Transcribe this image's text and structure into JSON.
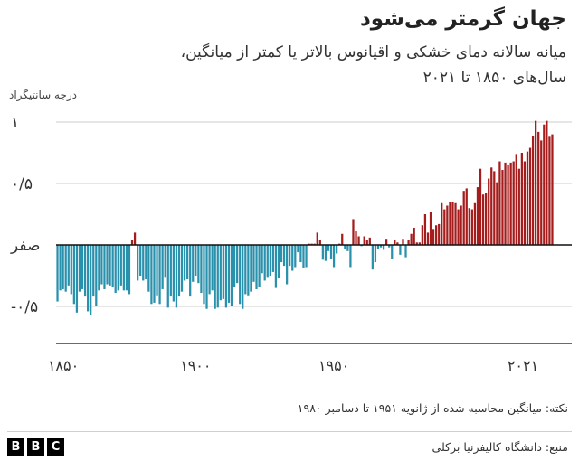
{
  "chart_data": {
    "type": "bar",
    "title": "جهان گرمتر می‌شود",
    "subtitle_lines": [
      "میانه سالانه دمای خشکی و اقیانوس بالاتر یا کمتر از میانگین،",
      "سال‌های ۱۸۵۰ تا ۲۰۲۱"
    ],
    "ylabel": "درجه سانتیگراد",
    "xlabel": "",
    "ylim": [
      -0.82,
      1.05
    ],
    "xlim": [
      1850,
      2021
    ],
    "y_ticks": [
      {
        "value": 1,
        "label": "۱"
      },
      {
        "value": 0.5,
        "label": "۰/۵"
      },
      {
        "value": 0,
        "label": "صفر"
      },
      {
        "value": -0.5,
        "label": "-۰/۵"
      }
    ],
    "x_ticks": [
      {
        "value": 1850,
        "label": "۱۸۵۰"
      },
      {
        "value": 1900,
        "label": "۱۹۰۰"
      },
      {
        "value": 1950,
        "label": "۱۹۵۰"
      },
      {
        "value": 2021,
        "label": "۲۰۲۱"
      }
    ],
    "grid": true,
    "legend": "none",
    "start_year": 1850,
    "colors": {
      "positive": "#a51c1c",
      "negative": "#2a91ad",
      "grid": "#cccccc",
      "axis": "#111111"
    },
    "values": [
      -0.46,
      -0.37,
      -0.36,
      -0.38,
      -0.33,
      -0.4,
      -0.48,
      -0.55,
      -0.38,
      -0.36,
      -0.42,
      -0.54,
      -0.57,
      -0.42,
      -0.5,
      -0.37,
      -0.32,
      -0.36,
      -0.32,
      -0.33,
      -0.34,
      -0.39,
      -0.37,
      -0.33,
      -0.37,
      -0.37,
      -0.4,
      0.04,
      0.1,
      -0.29,
      -0.25,
      -0.29,
      -0.28,
      -0.38,
      -0.48,
      -0.47,
      -0.41,
      -0.48,
      -0.36,
      -0.26,
      -0.51,
      -0.42,
      -0.46,
      -0.51,
      -0.42,
      -0.38,
      -0.29,
      -0.28,
      -0.42,
      -0.3,
      -0.25,
      -0.31,
      -0.39,
      -0.48,
      -0.52,
      -0.4,
      -0.37,
      -0.52,
      -0.51,
      -0.45,
      -0.44,
      -0.51,
      -0.47,
      -0.5,
      -0.34,
      -0.31,
      -0.48,
      -0.52,
      -0.4,
      -0.41,
      -0.38,
      -0.3,
      -0.36,
      -0.34,
      -0.23,
      -0.29,
      -0.26,
      -0.25,
      -0.22,
      -0.35,
      -0.27,
      -0.14,
      -0.17,
      -0.32,
      -0.17,
      -0.21,
      -0.18,
      -0.06,
      -0.14,
      -0.19,
      -0.18,
      0.01,
      0.01,
      0.01,
      0.1,
      0.04,
      -0.12,
      -0.13,
      -0.05,
      -0.11,
      -0.18,
      -0.07,
      0.01,
      0.09,
      -0.03,
      -0.05,
      -0.18,
      0.21,
      0.11,
      0.07,
      -0.01,
      0.07,
      0.04,
      0.06,
      -0.2,
      -0.14,
      -0.03,
      -0.02,
      -0.04,
      0.05,
      -0.02,
      -0.11,
      0.04,
      0.02,
      -0.08,
      0.05,
      -0.1,
      0.04,
      0.09,
      0.14,
      0.02,
      0.02,
      0.16,
      0.25,
      0.1,
      0.27,
      0.13,
      0.16,
      0.17,
      0.34,
      0.29,
      0.32,
      0.35,
      0.35,
      0.34,
      0.29,
      0.32,
      0.44,
      0.46,
      0.3,
      0.29,
      0.34,
      0.47,
      0.62,
      0.41,
      0.42,
      0.54,
      0.63,
      0.6,
      0.51,
      0.68,
      0.61,
      0.67,
      0.65,
      0.67,
      0.68,
      0.74,
      0.62,
      0.75,
      0.68,
      0.76,
      0.79,
      0.89,
      1.01,
      0.92,
      0.85,
      0.98,
      1.01,
      0.88,
      0.9
    ]
  },
  "note": "نکته: میانگین محاسبه شده از ژانویه ۱۹۵۱ تا دسامبر ۱۹۸۰",
  "source": "منبع: دانشگاه کالیفرنیا برکلی",
  "logo": [
    "B",
    "B",
    "C"
  ]
}
